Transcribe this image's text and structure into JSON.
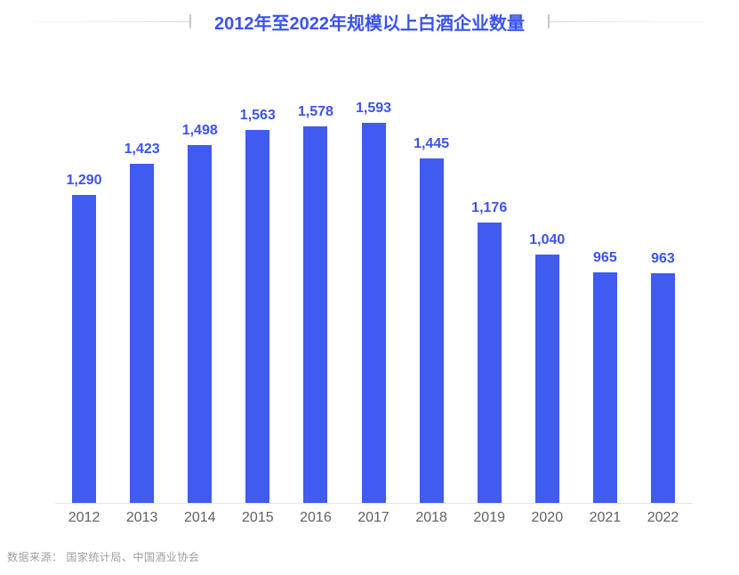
{
  "header": {
    "title": "2012年至2022年规模以上白酒企业数量"
  },
  "footer": {
    "source": "数据来源： 国家统计局、中国酒业协会"
  },
  "colors": {
    "bar": "#3F5BF0",
    "value_label": "#3B53EE",
    "title": "#3B53EE",
    "axis_label": "#616161",
    "source_text": "#9B9FA5",
    "baseline": "#E5E5E5",
    "decor_line": "#D8D8D8",
    "decor_tick": "#C6C6C6"
  },
  "chart_data": {
    "type": "bar",
    "title": "2012年至2022年规模以上白酒企业数量",
    "categories": [
      "2012",
      "2013",
      "2014",
      "2015",
      "2016",
      "2017",
      "2018",
      "2019",
      "2020",
      "2021",
      "2022"
    ],
    "values": [
      1290,
      1423,
      1498,
      1563,
      1578,
      1593,
      1445,
      1176,
      1040,
      965,
      963
    ],
    "value_labels": [
      "1,290",
      "1,423",
      "1,498",
      "1,563",
      "1,578",
      "1,593",
      "1,445",
      "1,176",
      "1,040",
      "965",
      "963"
    ],
    "xlabel": "",
    "ylabel": "",
    "ylim": [
      0,
      1700
    ],
    "grid": false,
    "legend": "none",
    "bar_color": "#3F5BF0",
    "value_labels_position": "above-bar"
  }
}
